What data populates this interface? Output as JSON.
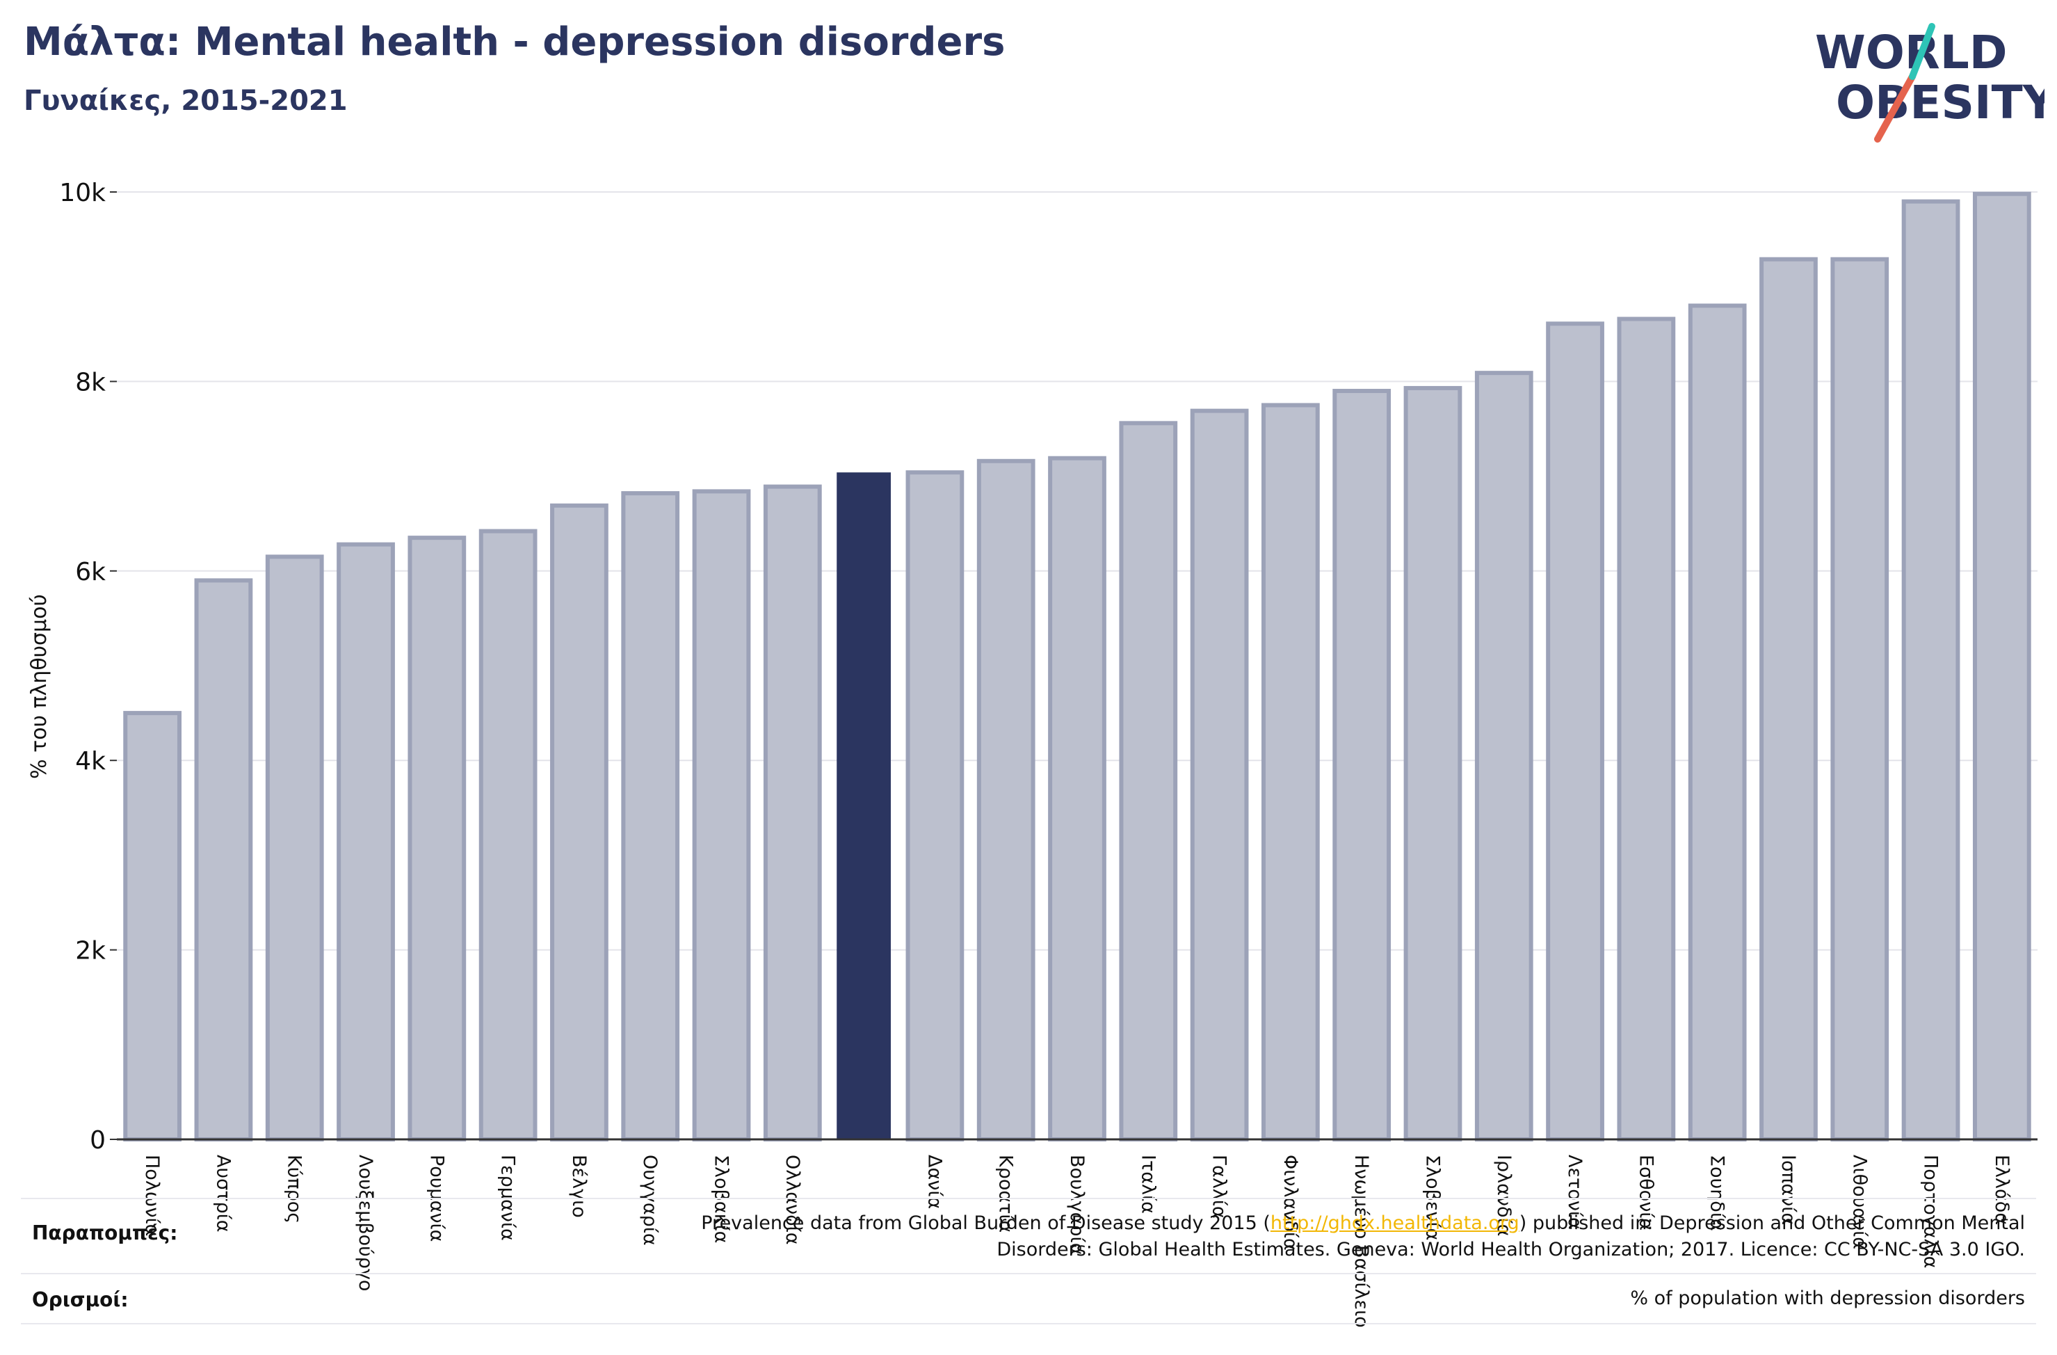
{
  "title": "Μάλτα: Mental health - depression disorders",
  "subtitle": "Γυναίκες, 2015-2021",
  "logo": {
    "line1": "WORLD",
    "line2": "OBESITY"
  },
  "colors": {
    "highlight": "#2b3560",
    "bar_fill": "#bcc0ce",
    "bar_stroke": "#9ca2b8",
    "title": "#2b3560"
  },
  "footer": {
    "references_label": "Παραπομπές:",
    "references_text_1": "Prevalence data from Global Burden of Disease study 2015 (",
    "references_link": "http://ghdx.healthdata.org",
    "references_text_2": ") published in: Depression and Other Common Mental",
    "references_text_3": "Disorders: Global Health Estimates. Geneva: World Health Organization; 2017. Licence: CC BY-NC-SA 3.0 IGO.",
    "definitions_label": "Ορισμοί:",
    "definitions_text": "% of population with depression disorders"
  },
  "chart_data": {
    "type": "bar",
    "ylabel": "% του πληθυσμού",
    "ylim": [
      0,
      10000
    ],
    "yticks": [
      0,
      2000,
      4000,
      6000,
      8000,
      10000
    ],
    "ytick_labels": [
      "0",
      "2k",
      "4k",
      "6k",
      "8k",
      "10k"
    ],
    "grid": true,
    "highlight_index": 10,
    "categories": [
      "Πολωνία",
      "Αυστρία",
      "Κύπρος",
      "Λουξεμβούργο",
      "Ρουμανία",
      "Γερμανία",
      "Βέλγιο",
      "Ουγγαρία",
      "Σλοβακία",
      "Ολλανδία",
      "",
      "Δανία",
      "Κροατία",
      "Βουλγαρία",
      "Ιταλία",
      "Γαλλία",
      "Φινλανδία",
      "Ηνωμένο Βασίλειο",
      "Σλοβενία",
      "Ιρλανδία",
      "Λετονία",
      "Εσθονία",
      "Σουηδία",
      "Ισπανία",
      "Λιθουανία",
      "Πορτογαλία",
      "Ελλάδα"
    ],
    "values": [
      4500,
      5900,
      6150,
      6280,
      6350,
      6420,
      6690,
      6820,
      6840,
      6890,
      7040,
      7040,
      7160,
      7190,
      7560,
      7690,
      7750,
      7900,
      7930,
      8090,
      8610,
      8660,
      8800,
      9290,
      9290,
      9900,
      9980
    ]
  }
}
